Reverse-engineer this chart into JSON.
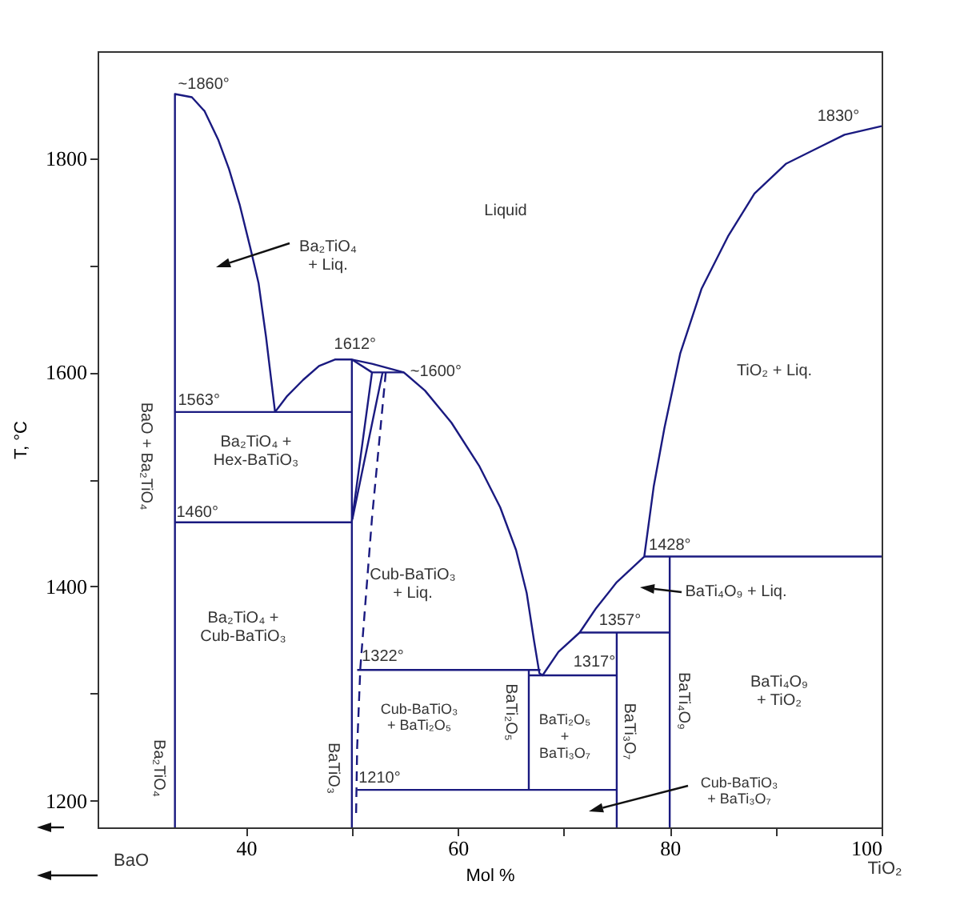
{
  "chart_data": {
    "type": "line",
    "xlabel": "Mol %",
    "ylabel": "T, °C",
    "xlim": [
      26,
      100
    ],
    "ylim": [
      1175,
      1900
    ],
    "xticks": [
      40,
      {
        "value": 50,
        "label": null
      },
      60,
      {
        "value": 70,
        "label": null
      },
      80,
      {
        "value": 90,
        "label": null
      },
      100
    ],
    "yticks": [
      1200,
      {
        "value": 1300,
        "label": null
      },
      1400,
      {
        "value": 1500,
        "label": null
      },
      1600,
      {
        "value": 1700,
        "label": null
      },
      1800
    ],
    "grid": false,
    "legend": false,
    "line_style": "solid",
    "series": [
      {
        "color": "#1a1a80",
        "x": [
          33.3,
          33.3,
          34.9,
          36.1,
          37.4,
          38.4,
          39.4,
          40.4,
          41.2,
          41.9,
          42.75,
          43.9,
          45.4,
          46.9,
          48.4,
          50,
          51.9,
          54.9,
          56.9,
          59.4,
          62.0,
          64.0,
          65.5,
          66.5,
          67.2,
          67.7,
          68.0,
          69.5,
          71.5,
          73.0,
          75.0,
          77.6,
          78.5,
          79.5,
          81.0,
          83.0,
          85.5,
          88.0,
          91.0,
          96.5,
          100
        ],
        "values": [
          1175,
          1860,
          1857,
          1844,
          1817,
          1790,
          1757,
          1717,
          1683,
          1633,
          1563,
          1578,
          1593,
          1606,
          1612,
          1612,
          1608,
          1600,
          1583,
          1553,
          1513,
          1474,
          1434,
          1394,
          1349,
          1319,
          1317,
          1339,
          1357,
          1379,
          1404,
          1428,
          1494,
          1548,
          1618,
          1678,
          1727,
          1767,
          1795,
          1822,
          1830
        ]
      },
      {
        "color": "#1a1a80",
        "x": [
          33.3,
          50
        ],
        "values": [
          1563,
          1563
        ]
      },
      {
        "color": "#1a1a80",
        "x": [
          33.3,
          50
        ],
        "values": [
          1460,
          1460
        ]
      },
      {
        "color": "#1a1a80",
        "x": [
          50,
          50
        ],
        "values": [
          1175,
          1612
        ]
      },
      {
        "color": "#1a1a80",
        "x": [
          50,
          51.9
        ],
        "values": [
          1612,
          1600
        ]
      },
      {
        "color": "#1a1a80",
        "x": [
          50,
          51.9,
          54.9
        ],
        "values": [
          1461,
          1600,
          1600
        ]
      },
      {
        "color": "#1a1a80",
        "x": [
          52.9,
          50.05
        ],
        "values": [
          1600,
          1463
        ]
      },
      {
        "color": "#1a1a80",
        "line_style": "dashed",
        "x": [
          53.2,
          51.9,
          50.8,
          50.5,
          50.4
        ],
        "values": [
          1600,
          1464,
          1324,
          1250,
          1188
        ]
      },
      {
        "color": "#1a1a80",
        "x": [
          50.5,
          67.8
        ],
        "values": [
          1322,
          1322
        ]
      },
      {
        "color": "#1a1a80",
        "x": [
          66.7,
          75
        ],
        "values": [
          1317,
          1317
        ]
      },
      {
        "color": "#1a1a80",
        "x": [
          66.7,
          66.7
        ],
        "values": [
          1210,
          1322
        ]
      },
      {
        "color": "#1a1a80",
        "x": [
          50.5,
          75
        ],
        "values": [
          1210,
          1210
        ]
      },
      {
        "color": "#1a1a80",
        "x": [
          75,
          75
        ],
        "values": [
          1175,
          1357
        ]
      },
      {
        "color": "#1a1a80",
        "x": [
          71.5,
          80
        ],
        "values": [
          1357,
          1357
        ]
      },
      {
        "color": "#1a1a80",
        "x": [
          80,
          80
        ],
        "values": [
          1175,
          1428
        ]
      },
      {
        "color": "#1a1a80",
        "x": [
          77.6,
          100
        ],
        "values": [
          1428,
          1428
        ]
      }
    ],
    "annotations": [
      "BaO",
      "TiO₂",
      {
        "text": "~1860°",
        "x": 33.3,
        "y": 1860
      },
      {
        "text": "1612°",
        "x": 50,
        "y": 1612
      },
      {
        "text": "~1600°",
        "x": 54.9,
        "y": 1600
      },
      {
        "text": "1563°",
        "x": 33.3,
        "y": 1563
      },
      {
        "text": "1460°",
        "x": 33.3,
        "y": 1460
      },
      {
        "text": "1322°",
        "x": 50.5,
        "y": 1322
      },
      {
        "text": "1317°",
        "x": 75,
        "y": 1317
      },
      {
        "text": "1210°",
        "x": 50.5,
        "y": 1210
      },
      {
        "text": "1357°",
        "x": 75,
        "y": 1357
      },
      {
        "text": "1428°",
        "x": 77.6,
        "y": 1428
      },
      {
        "text": "1830°",
        "x": 100,
        "y": 1830
      },
      "Liquid",
      "Ba₂TiO₄\n+ Liq.",
      "Ba₂TiO₄ +\nHex-BaTiO₃",
      "Ba₂TiO₄ +\nCub-BaTiO₃",
      "Cub-BaTiO₃\n+ Liq.",
      "Cub-BaTiO₃\n+ BaTi₂O₅",
      "BaTi₂O₅\n+\nBaTi₃O₇",
      "BaTi₄O₉\n+ TiO₂",
      "TiO₂ + Liq.",
      "BaTi₄O₉ + Liq.",
      "Cub-BaTiO₃\n+ BaTi₃O₇",
      "Ba₂TiO₄",
      "BaO + Ba₂TiO₄",
      "BaTiO₃",
      "BaTi₂O₅",
      "BaTi₃O₇",
      "BaTi₄O₉"
    ]
  }
}
